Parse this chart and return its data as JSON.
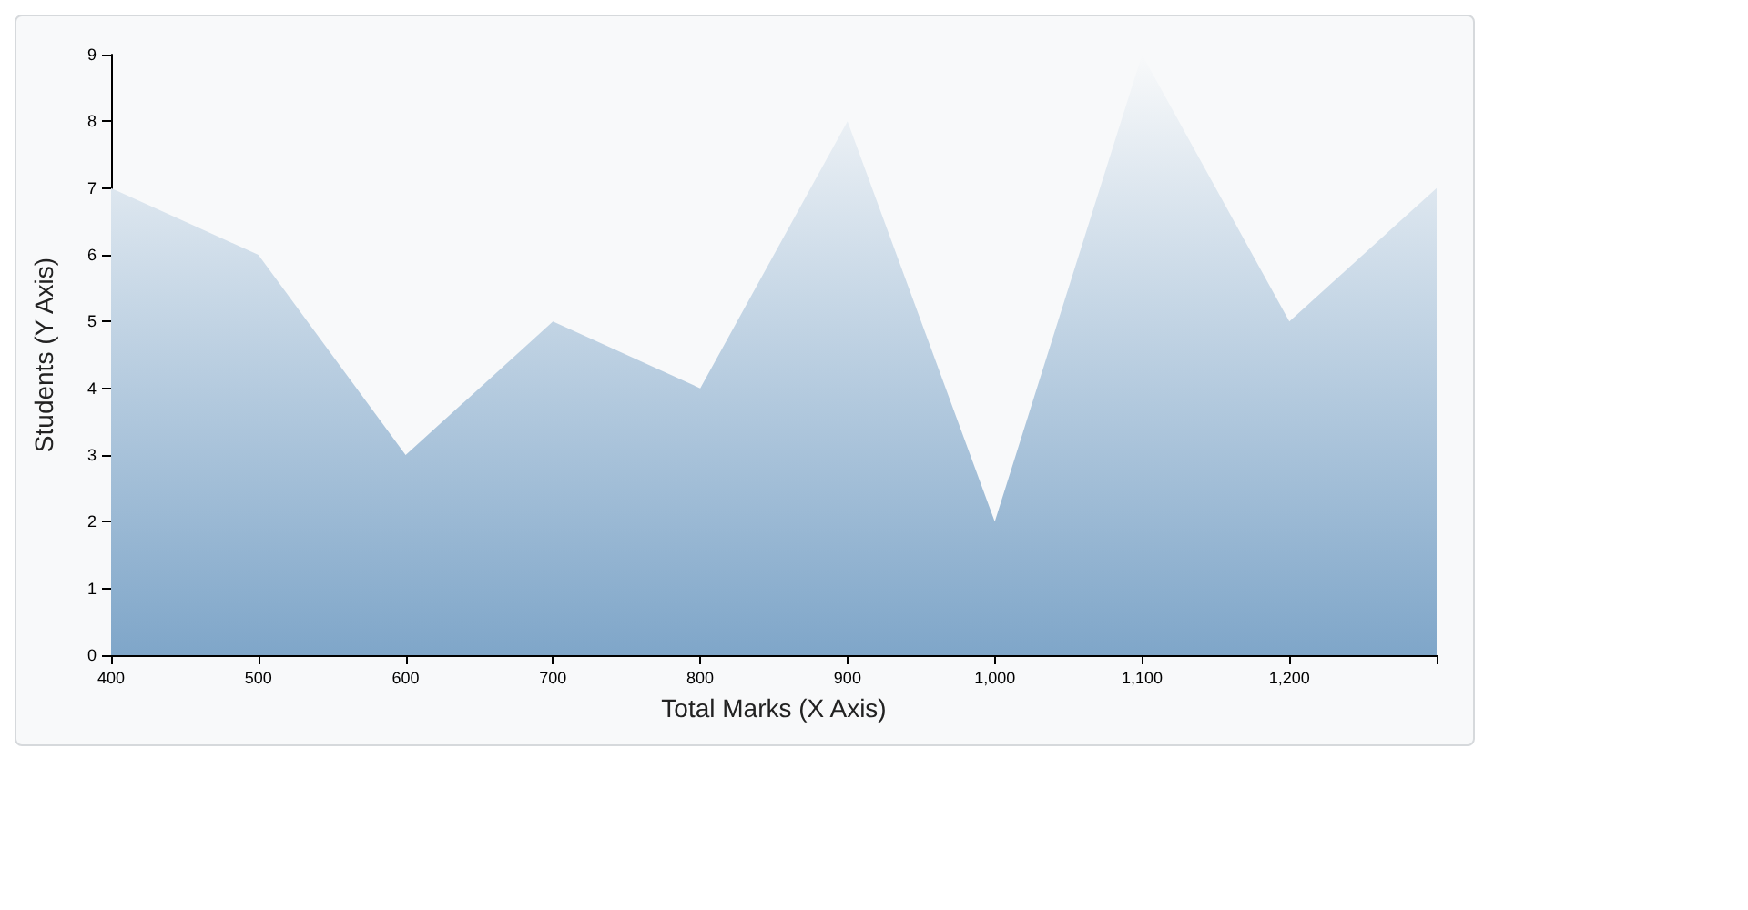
{
  "chart_data": {
    "type": "area",
    "xlabel": "Total Marks (X Axis)",
    "ylabel": "Students (Y Axis)",
    "x": [
      400,
      500,
      600,
      700,
      800,
      900,
      1000,
      1100,
      1200,
      1300
    ],
    "series": [
      {
        "color": "#7fa6c9",
        "values": [
          7,
          6,
          3,
          5,
          4,
          8,
          2,
          9,
          5,
          7
        ]
      }
    ],
    "xlim": [
      400,
      1300
    ],
    "xticks": [
      400,
      500,
      600,
      700,
      800,
      900,
      {
        "value": 1000,
        "label": "1,000"
      },
      {
        "value": 1100,
        "label": "1,100"
      },
      {
        "value": 1200,
        "label": "1,200"
      },
      {
        "value": 1300,
        "label": null
      }
    ],
    "ylim": [
      0,
      9
    ],
    "yticks": [
      0,
      1,
      2,
      3,
      4,
      5,
      6,
      7,
      8,
      9
    ],
    "grid": false
  }
}
